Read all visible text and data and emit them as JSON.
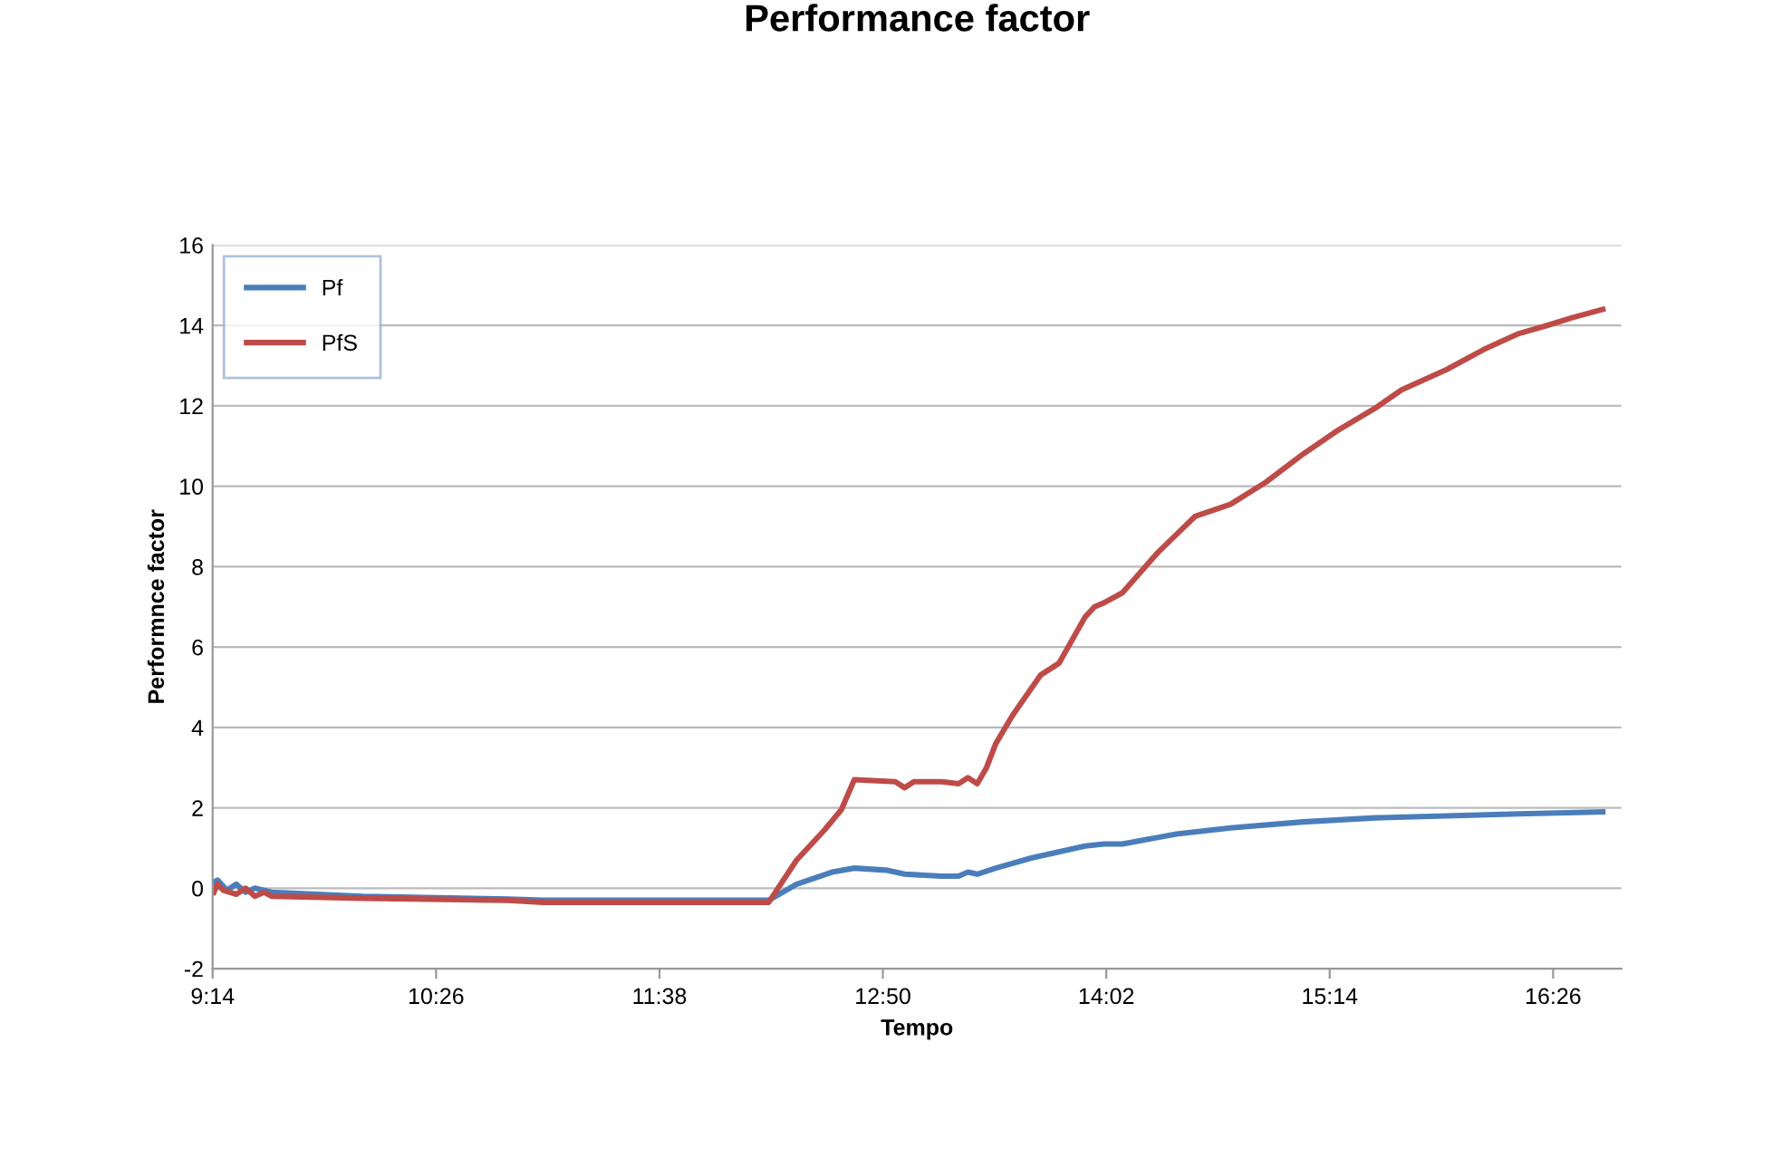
{
  "chart_data": {
    "type": "line",
    "title": "Performance factor",
    "xlabel": "Tempo",
    "ylabel": "Performnce factor",
    "series": [
      {
        "name": "Pf",
        "color": "#4a7ebb",
        "x": [
          9.24,
          9.26,
          9.31,
          9.36,
          9.41,
          9.46,
          9.55,
          10.04,
          10.82,
          11.01,
          12.22,
          12.37,
          12.56,
          12.68,
          12.85,
          12.95,
          13.15,
          13.24,
          13.29,
          13.34,
          13.44,
          13.63,
          13.92,
          14.02,
          14.12,
          14.41,
          14.7,
          15.09,
          15.48,
          15.86,
          16.25,
          16.7
        ],
        "values": [
          0.15,
          0.2,
          -0.05,
          0.1,
          -0.1,
          0,
          -0.1,
          -0.2,
          -0.27,
          -0.3,
          -0.3,
          0.1,
          0.4,
          0.5,
          0.45,
          0.35,
          0.3,
          0.3,
          0.4,
          0.35,
          0.5,
          0.75,
          1.05,
          1.1,
          1.1,
          1.35,
          1.5,
          1.65,
          1.75,
          1.8,
          1.85,
          1.9
        ]
      },
      {
        "name": "PfS",
        "color": "#be4b48",
        "x": [
          9.24,
          9.26,
          9.29,
          9.36,
          9.41,
          9.46,
          9.51,
          9.55,
          10.04,
          10.82,
          11.01,
          11.98,
          12.22,
          12.37,
          12.52,
          12.61,
          12.68,
          12.9,
          12.95,
          13.0,
          13.15,
          13.24,
          13.29,
          13.34,
          13.39,
          13.44,
          13.53,
          13.68,
          13.78,
          13.92,
          13.97,
          14.02,
          14.12,
          14.31,
          14.41,
          14.51,
          14.7,
          14.89,
          15.09,
          15.28,
          15.48,
          15.62,
          15.86,
          16.06,
          16.25,
          16.4,
          16.54,
          16.7
        ],
        "values": [
          -0.1,
          0.1,
          -0.05,
          -0.15,
          0,
          -0.2,
          -0.1,
          -0.2,
          -0.25,
          -0.3,
          -0.35,
          -0.35,
          -0.35,
          0.7,
          1.45,
          1.95,
          2.7,
          2.65,
          2.5,
          2.65,
          2.65,
          2.6,
          2.75,
          2.6,
          3.0,
          3.6,
          4.3,
          5.3,
          5.6,
          6.75,
          7.0,
          7.1,
          7.35,
          8.35,
          8.8,
          9.25,
          9.55,
          10.1,
          10.8,
          11.4,
          11.95,
          12.4,
          12.9,
          13.4,
          13.8,
          14.0,
          14.2,
          14.4
        ]
      }
    ],
    "xlim": [
      9.2333,
      16.8
    ],
    "xticks": [
      {
        "value": 9.2333,
        "label": "9:14"
      },
      {
        "value": 10.4333,
        "label": "10:26"
      },
      {
        "value": 11.6333,
        "label": "11:38"
      },
      {
        "value": 12.8333,
        "label": "12:50"
      },
      {
        "value": 14.0333,
        "label": "14:02"
      },
      {
        "value": 15.2333,
        "label": "15:14"
      },
      {
        "value": 16.4333,
        "label": "16:26"
      }
    ],
    "ylim": [
      -2,
      16
    ],
    "yticks": [
      -2,
      0,
      2,
      4,
      6,
      8,
      10,
      12,
      14,
      16
    ],
    "grid": "y",
    "legend": "top left",
    "marker": "none",
    "line_style": "solid"
  }
}
